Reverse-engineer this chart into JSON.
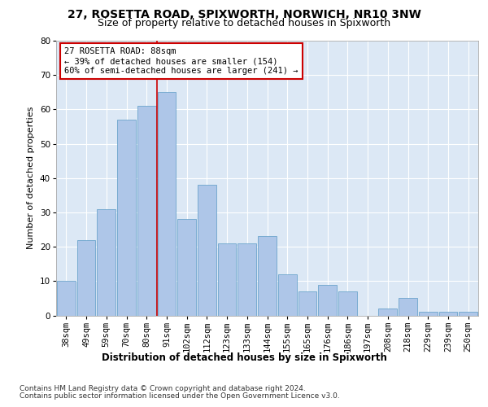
{
  "title1": "27, ROSETTA ROAD, SPIXWORTH, NORWICH, NR10 3NW",
  "title2": "Size of property relative to detached houses in Spixworth",
  "xlabel": "Distribution of detached houses by size in Spixworth",
  "ylabel": "Number of detached properties",
  "categories": [
    "38sqm",
    "49sqm",
    "59sqm",
    "70sqm",
    "80sqm",
    "91sqm",
    "102sqm",
    "112sqm",
    "123sqm",
    "133sqm",
    "144sqm",
    "155sqm",
    "165sqm",
    "176sqm",
    "186sqm",
    "197sqm",
    "208sqm",
    "218sqm",
    "229sqm",
    "239sqm",
    "250sqm"
  ],
  "values": [
    10,
    22,
    31,
    57,
    61,
    65,
    28,
    38,
    21,
    21,
    23,
    12,
    7,
    9,
    7,
    0,
    2,
    5,
    1,
    1,
    1
  ],
  "bar_color": "#aec6e8",
  "bar_edge_color": "#5a9ac5",
  "vline_x": 4.5,
  "vline_color": "#cc0000",
  "annotation_text": "27 ROSETTA ROAD: 88sqm\n← 39% of detached houses are smaller (154)\n60% of semi-detached houses are larger (241) →",
  "annotation_box_color": "#ffffff",
  "annotation_box_edge": "#cc0000",
  "ylim": [
    0,
    80
  ],
  "yticks": [
    0,
    10,
    20,
    30,
    40,
    50,
    60,
    70,
    80
  ],
  "background_color": "#dce8f5",
  "footer1": "Contains HM Land Registry data © Crown copyright and database right 2024.",
  "footer2": "Contains public sector information licensed under the Open Government Licence v3.0.",
  "title1_fontsize": 10,
  "title2_fontsize": 9,
  "xlabel_fontsize": 8.5,
  "ylabel_fontsize": 8,
  "tick_fontsize": 7.5,
  "annotation_fontsize": 7.5,
  "footer_fontsize": 6.5
}
